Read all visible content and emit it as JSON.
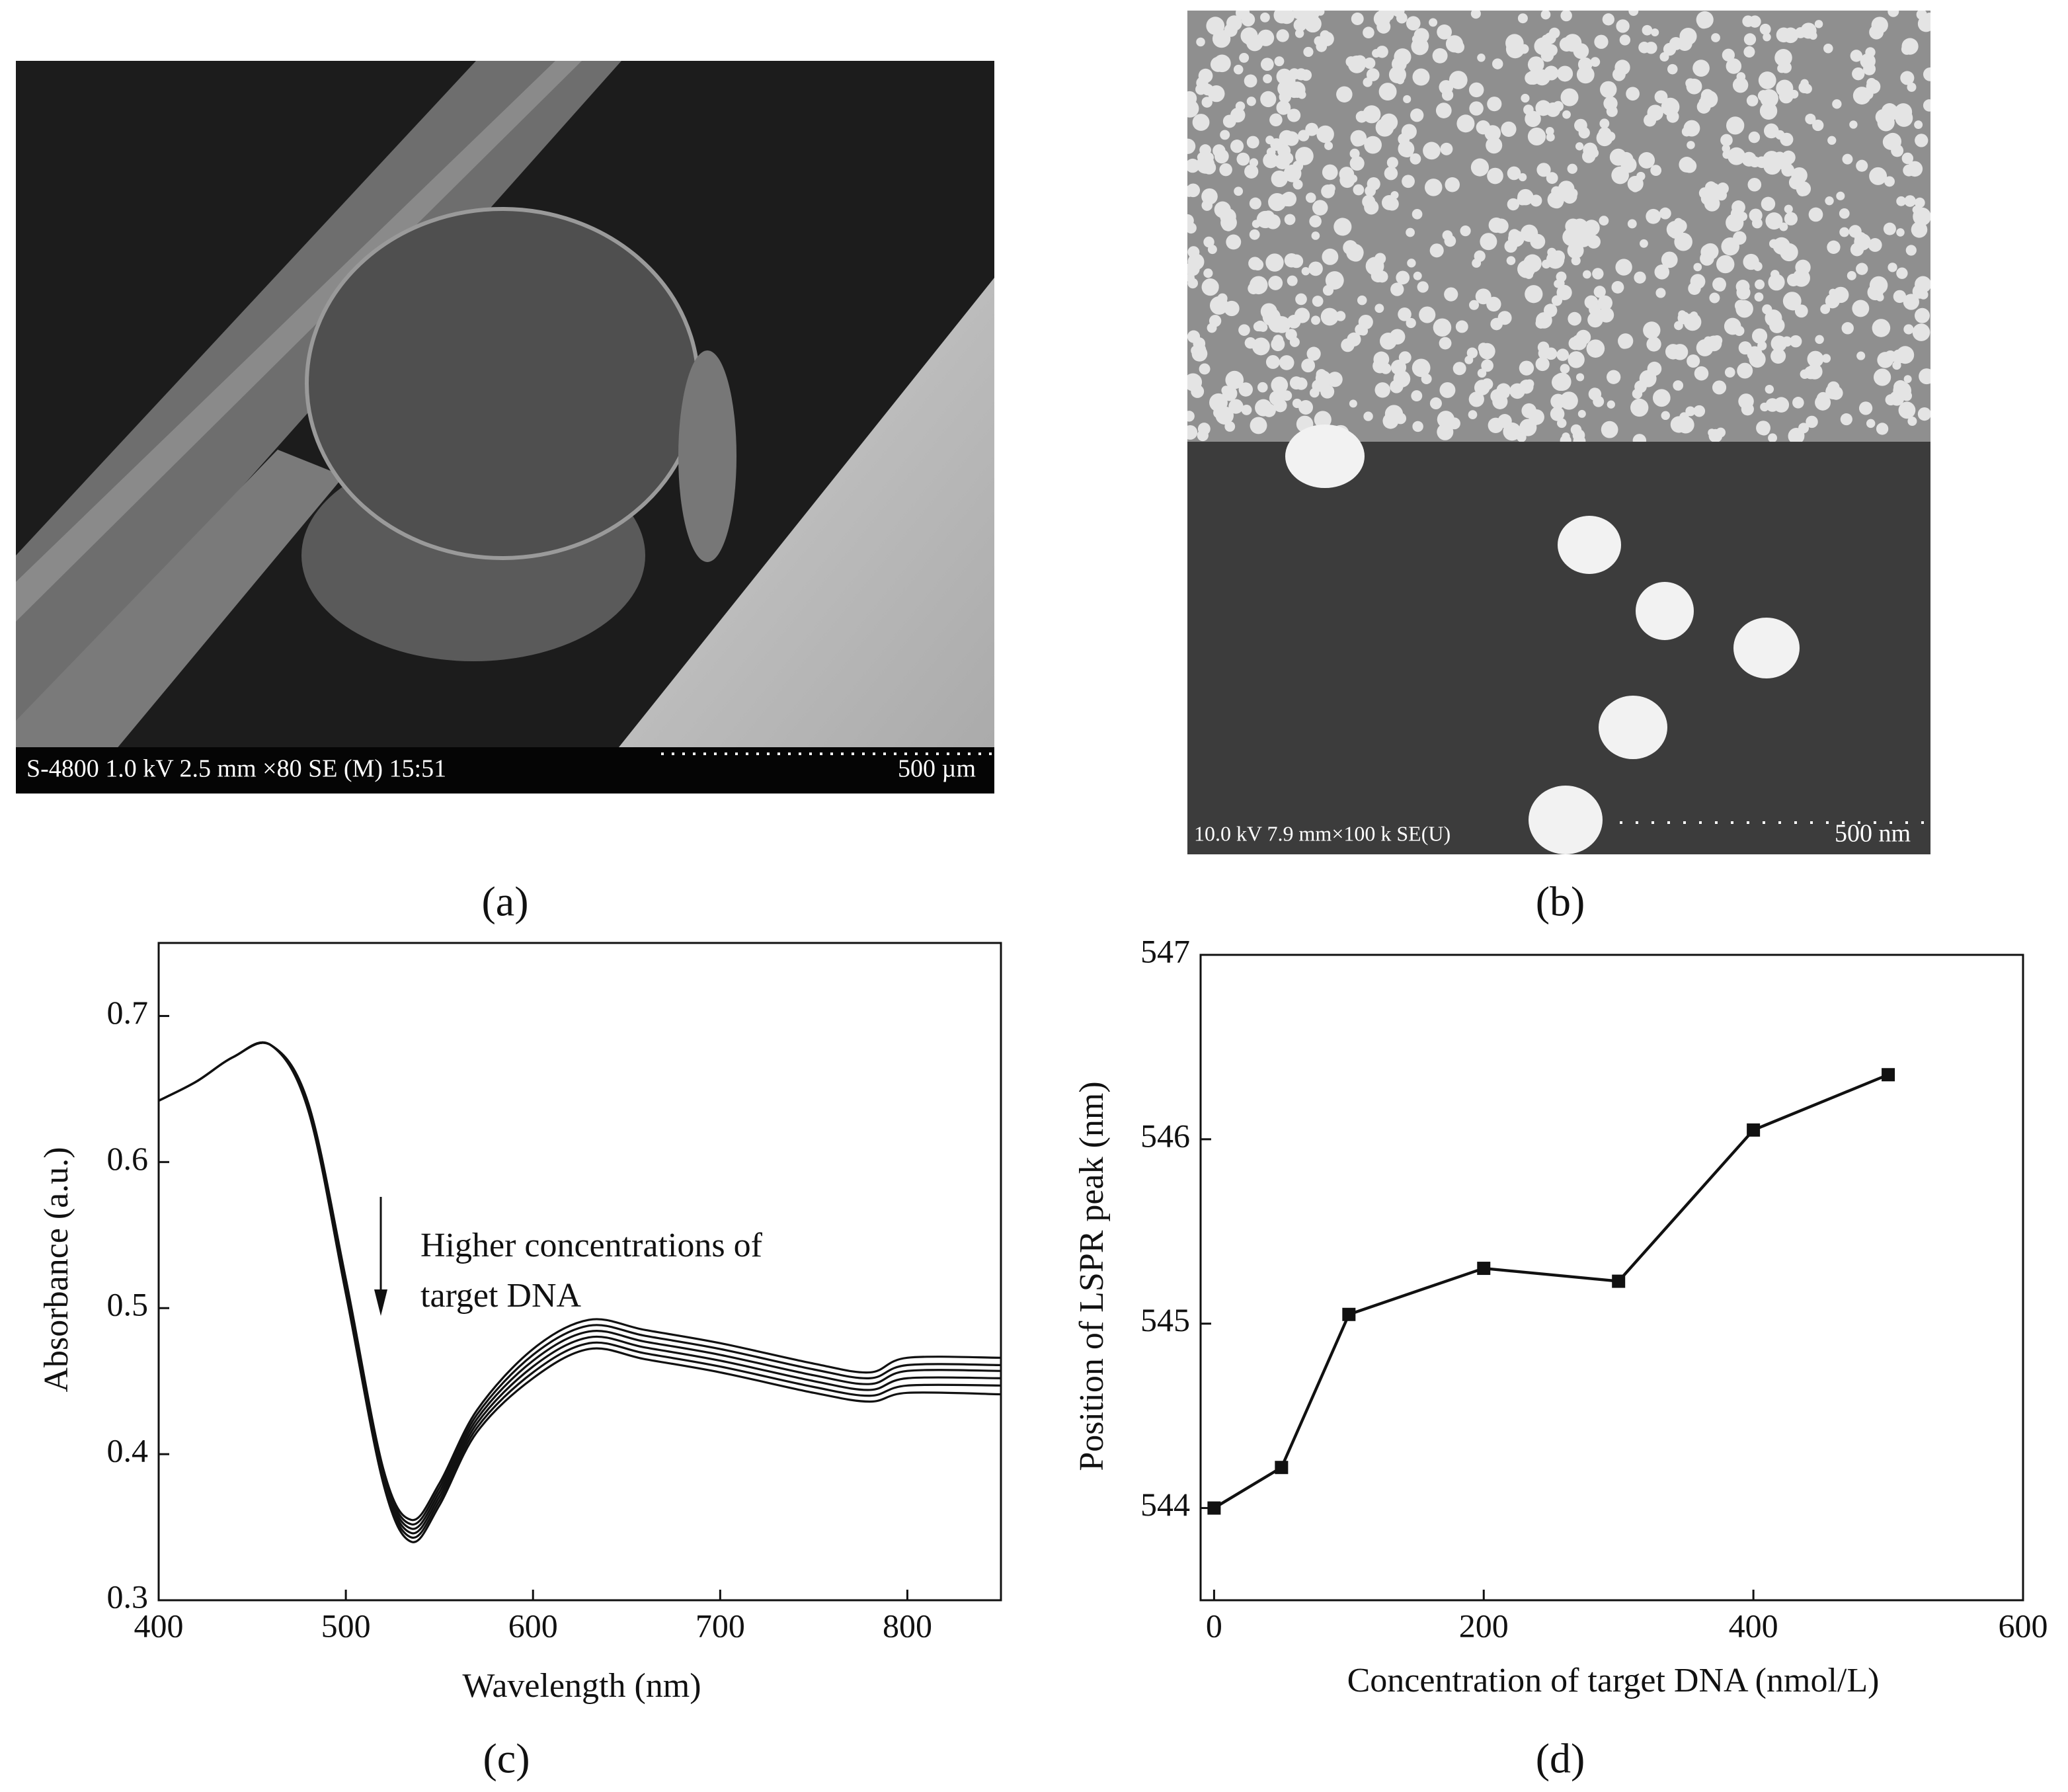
{
  "panels": {
    "a": {
      "label": "(a)",
      "info": "S-4800 1.0 kV  2.5 mm ×80 SE (M) 15:51",
      "scale": "500 µm"
    },
    "b": {
      "label": "(b)",
      "info": "10.0 kV 7.9 mm×100 k SE(U)",
      "scale": "500 nm"
    },
    "c": {
      "label": "(c)"
    },
    "d": {
      "label": "(d)"
    }
  },
  "chart_data": [
    {
      "type": "line",
      "x_label": "Wavelength (nm)",
      "y_label": "Absorbance (a.u.)",
      "annotation": [
        "Higher concentrations of",
        "target DNA"
      ],
      "x": [
        400,
        420,
        440,
        460,
        480,
        500,
        520,
        535,
        550,
        570,
        600,
        630,
        660,
        700,
        750,
        780,
        800,
        850
      ],
      "series": [
        {
          "color": "#111111",
          "values": [
            0.642,
            0.655,
            0.672,
            0.68,
            0.64,
            0.52,
            0.39,
            0.355,
            0.38,
            0.43,
            0.472,
            0.492,
            0.485,
            0.476,
            0.462,
            0.456,
            0.466,
            0.466
          ]
        },
        {
          "color": "#111111",
          "values": [
            0.642,
            0.655,
            0.672,
            0.68,
            0.639,
            0.518,
            0.388,
            0.352,
            0.377,
            0.427,
            0.468,
            0.488,
            0.481,
            0.472,
            0.458,
            0.452,
            0.461,
            0.461
          ]
        },
        {
          "color": "#111111",
          "values": [
            0.642,
            0.655,
            0.672,
            0.68,
            0.638,
            0.516,
            0.386,
            0.349,
            0.374,
            0.424,
            0.464,
            0.484,
            0.477,
            0.468,
            0.454,
            0.448,
            0.457,
            0.457
          ]
        },
        {
          "color": "#111111",
          "values": [
            0.642,
            0.655,
            0.672,
            0.68,
            0.637,
            0.514,
            0.384,
            0.346,
            0.371,
            0.421,
            0.46,
            0.48,
            0.473,
            0.464,
            0.45,
            0.444,
            0.452,
            0.452
          ]
        },
        {
          "color": "#111111",
          "values": [
            0.642,
            0.655,
            0.672,
            0.68,
            0.636,
            0.512,
            0.382,
            0.343,
            0.368,
            0.418,
            0.456,
            0.476,
            0.469,
            0.46,
            0.446,
            0.44,
            0.447,
            0.447
          ]
        },
        {
          "color": "#111111",
          "values": [
            0.642,
            0.655,
            0.672,
            0.68,
            0.635,
            0.51,
            0.38,
            0.34,
            0.365,
            0.415,
            0.452,
            0.472,
            0.465,
            0.456,
            0.442,
            0.436,
            0.442,
            0.441
          ]
        }
      ],
      "xlim": [
        400,
        850
      ],
      "xticks": [
        400,
        500,
        600,
        700,
        800
      ],
      "ylim": [
        0.3,
        0.75
      ],
      "yticks": [
        0.3,
        0.4,
        0.5,
        0.6,
        0.7
      ]
    },
    {
      "type": "line",
      "marker": "square",
      "x_label": "Concentration of target DNA (nmol/L)",
      "y_label": "Position of LSPR peak (nm)",
      "x": [
        0,
        50,
        100,
        200,
        300,
        400,
        500
      ],
      "series": [
        {
          "color": "#111111",
          "values": [
            544.0,
            544.22,
            545.05,
            545.3,
            545.23,
            546.05,
            546.35
          ]
        }
      ],
      "xlim": [
        -10,
        600
      ],
      "xticks": [
        0,
        200,
        400,
        600
      ],
      "ylim": [
        543.5,
        547
      ],
      "yticks": [
        544,
        545,
        546,
        547
      ]
    }
  ]
}
